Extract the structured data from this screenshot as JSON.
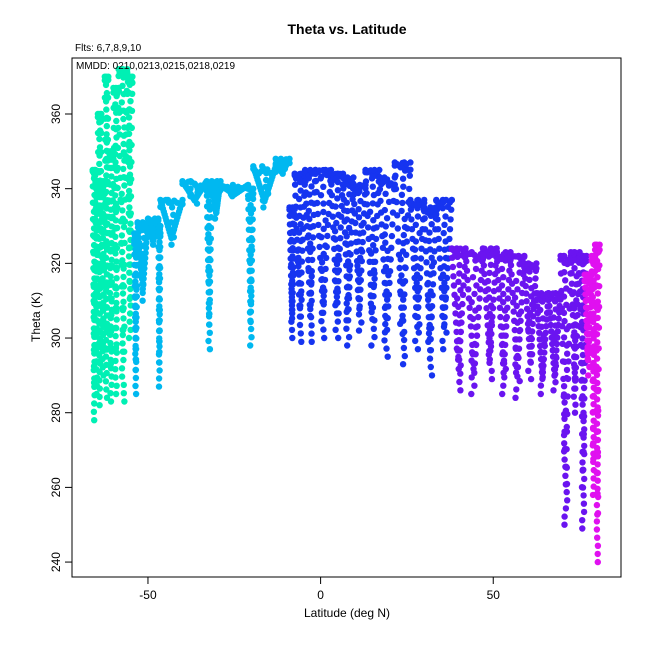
{
  "chart_data": {
    "type": "scatter",
    "title": "Theta vs. Latitude",
    "subtitle": "Flts: 6,7,8,9,10",
    "annotation": "MMDD: 0210,0213,0215,0218,0219",
    "xlabel": "Latitude (deg N)",
    "ylabel": "Theta (K)",
    "xlim": [
      -72,
      87
    ],
    "ylim": [
      236,
      375
    ],
    "xticks": [
      -50,
      0,
      50
    ],
    "yticks": [
      240,
      260,
      280,
      300,
      320,
      340,
      360
    ],
    "xtick_labels": [
      "-50",
      "0",
      "50"
    ],
    "ytick_labels": [
      "240",
      "260",
      "280",
      "300",
      "320",
      "340",
      "360"
    ],
    "grid": false,
    "series": [
      {
        "color": "#00f0b4",
        "segments": [
          {
            "x0": -66,
            "x1": -65.2,
            "y_low": 278,
            "y_high": 345
          },
          {
            "x0": -65.2,
            "x1": -64.5,
            "y_low": 285,
            "y_high": 342
          },
          {
            "x0": -64.5,
            "x1": -63.5,
            "y_low": 282,
            "y_high": 360
          },
          {
            "x0": -63.5,
            "x1": -62.5,
            "y_low": 290,
            "y_high": 342
          },
          {
            "x0": -62.5,
            "x1": -61.5,
            "y_low": 284,
            "y_high": 370
          },
          {
            "x0": -61.5,
            "x1": -60,
            "y_low": 283,
            "y_high": 350
          },
          {
            "x0": -60,
            "x1": -58.5,
            "y_low": 285,
            "y_high": 367
          },
          {
            "x0": -58.5,
            "x1": -56,
            "y_low": 283,
            "y_high": 372
          },
          {
            "x0": -56,
            "x1": -54.5,
            "y_low": 300,
            "y_high": 370
          }
        ]
      },
      {
        "color": "#00b8f0",
        "segments": [
          {
            "x0": -54,
            "x1": -53,
            "y_low": 285,
            "y_high": 328
          },
          {
            "x0": -53,
            "x1": -50,
            "y_low": 310,
            "y_high": 331
          },
          {
            "x0": -50,
            "x1": -47,
            "y_low": 325,
            "y_high": 332
          },
          {
            "x0": -47,
            "x1": -46.4,
            "y_low": 287,
            "y_high": 330
          },
          {
            "x0": -46.4,
            "x1": -40,
            "y_low": 325,
            "y_high": 337
          },
          {
            "x0": -40,
            "x1": -33,
            "y_low": 336,
            "y_high": 342
          },
          {
            "x0": -33,
            "x1": -31.5,
            "y_low": 297,
            "y_high": 341
          },
          {
            "x0": -31.5,
            "x1": -29,
            "y_low": 332,
            "y_high": 342
          },
          {
            "x0": -29,
            "x1": -21,
            "y_low": 338,
            "y_high": 341
          },
          {
            "x0": -21,
            "x1": -19.5,
            "y_low": 298,
            "y_high": 340
          },
          {
            "x0": -19.5,
            "x1": -13,
            "y_low": 335,
            "y_high": 346
          },
          {
            "x0": -13,
            "x1": -9,
            "y_low": 344,
            "y_high": 348
          }
        ]
      },
      {
        "color": "#1634f0",
        "segments": [
          {
            "x0": -9,
            "x1": -7.5,
            "y_low": 300,
            "y_high": 335
          },
          {
            "x0": -7.5,
            "x1": -4.5,
            "y_low": 299,
            "y_high": 344
          },
          {
            "x0": -4.5,
            "x1": -1.5,
            "y_low": 299,
            "y_high": 345
          },
          {
            "x0": -1.5,
            "x1": 3,
            "y_low": 300,
            "y_high": 345
          },
          {
            "x0": 3,
            "x1": 6.5,
            "y_low": 300,
            "y_high": 344
          },
          {
            "x0": 6.5,
            "x1": 9.5,
            "y_low": 298,
            "y_high": 343
          },
          {
            "x0": 9.5,
            "x1": 13,
            "y_low": 302,
            "y_high": 341
          },
          {
            "x0": 13,
            "x1": 17,
            "y_low": 298,
            "y_high": 345
          },
          {
            "x0": 17,
            "x1": 21.5,
            "y_low": 295,
            "y_high": 343
          },
          {
            "x0": 21.5,
            "x1": 26,
            "y_low": 293,
            "y_high": 347
          },
          {
            "x0": 26,
            "x1": 30,
            "y_low": 297,
            "y_high": 337
          },
          {
            "x0": 30,
            "x1": 33.5,
            "y_low": 290,
            "y_high": 335
          },
          {
            "x0": 33.5,
            "x1": 38,
            "y_low": 297,
            "y_high": 337
          }
        ]
      },
      {
        "color": "#6a14f0",
        "segments": [
          {
            "x0": 38,
            "x1": 42,
            "y_low": 286,
            "y_high": 324
          },
          {
            "x0": 42,
            "x1": 47,
            "y_low": 285,
            "y_high": 323
          },
          {
            "x0": 47,
            "x1": 51,
            "y_low": 289,
            "y_high": 324
          },
          {
            "x0": 51,
            "x1": 55,
            "y_low": 285,
            "y_high": 323
          },
          {
            "x0": 55,
            "x1": 59,
            "y_low": 284,
            "y_high": 322
          },
          {
            "x0": 59,
            "x1": 62.5,
            "y_low": 289,
            "y_high": 320
          },
          {
            "x0": 62.5,
            "x1": 66,
            "y_low": 285,
            "y_high": 312
          },
          {
            "x0": 66,
            "x1": 69.5,
            "y_low": 286,
            "y_high": 312
          },
          {
            "x0": 69.5,
            "x1": 72.5,
            "y_low": 250,
            "y_high": 322
          },
          {
            "x0": 72.5,
            "x1": 75,
            "y_low": 280,
            "y_high": 323
          },
          {
            "x0": 75,
            "x1": 77,
            "y_low": 249,
            "y_high": 322
          }
        ]
      },
      {
        "color": "#e010f0",
        "segments": [
          {
            "x0": 76.5,
            "x1": 78.5,
            "y_low": 290,
            "y_high": 317
          },
          {
            "x0": 78.5,
            "x1": 79.5,
            "y_low": 258,
            "y_high": 322
          },
          {
            "x0": 79.5,
            "x1": 80.8,
            "y_low": 240,
            "y_high": 325
          }
        ]
      }
    ]
  }
}
